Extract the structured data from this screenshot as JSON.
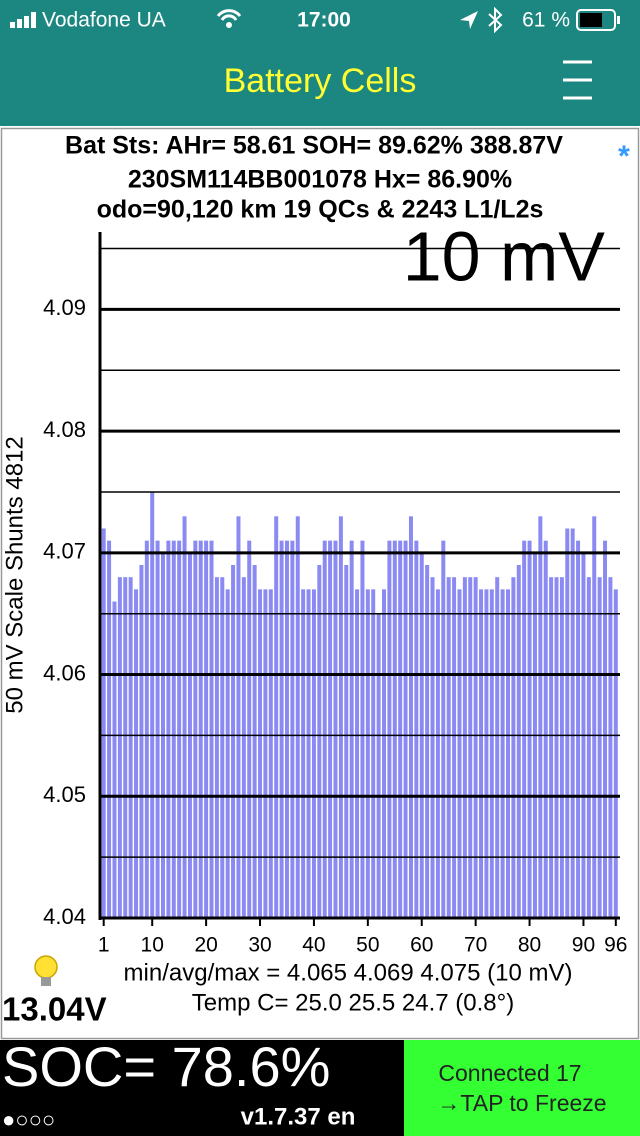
{
  "status_bar": {
    "carrier": "Vodafone UA",
    "time": "17:00",
    "battery": "61 %"
  },
  "nav": {
    "title": "Battery Cells"
  },
  "header": {
    "line1": "Bat Sts: AHr= 58.61 SOH= 89.62% 388.87V",
    "line2": "230SM114BB001078   Hx= 86.90%",
    "line3": "odo=90,120 km 19 QCs & 2243 L1/L2s",
    "marker": "*"
  },
  "chart_data": {
    "type": "bar",
    "scale_label": "10 mV",
    "y_label": "50 mV Scale   Shunts 4812",
    "x": [
      1,
      2,
      3,
      4,
      5,
      6,
      7,
      8,
      9,
      10,
      11,
      12,
      13,
      14,
      15,
      16,
      17,
      18,
      19,
      20,
      21,
      22,
      23,
      24,
      25,
      26,
      27,
      28,
      29,
      30,
      31,
      32,
      33,
      34,
      35,
      36,
      37,
      38,
      39,
      40,
      41,
      42,
      43,
      44,
      45,
      46,
      47,
      48,
      49,
      50,
      51,
      52,
      53,
      54,
      55,
      56,
      57,
      58,
      59,
      60,
      61,
      62,
      63,
      64,
      65,
      66,
      67,
      68,
      69,
      70,
      71,
      72,
      73,
      74,
      75,
      76,
      77,
      78,
      79,
      80,
      81,
      82,
      83,
      84,
      85,
      86,
      87,
      88,
      89,
      90,
      91,
      92,
      93,
      94,
      95,
      96
    ],
    "values": [
      4.072,
      4.071,
      4.066,
      4.068,
      4.068,
      4.068,
      4.067,
      4.069,
      4.071,
      4.075,
      4.071,
      4.07,
      4.071,
      4.071,
      4.071,
      4.073,
      4.07,
      4.071,
      4.071,
      4.071,
      4.071,
      4.068,
      4.068,
      4.067,
      4.069,
      4.073,
      4.068,
      4.071,
      4.069,
      4.067,
      4.067,
      4.067,
      4.073,
      4.071,
      4.071,
      4.071,
      4.073,
      4.067,
      4.067,
      4.067,
      4.069,
      4.071,
      4.071,
      4.071,
      4.073,
      4.069,
      4.071,
      4.067,
      4.071,
      4.067,
      4.067,
      4.065,
      4.067,
      4.071,
      4.071,
      4.071,
      4.071,
      4.073,
      4.071,
      4.07,
      4.069,
      4.068,
      4.067,
      4.071,
      4.068,
      4.068,
      4.067,
      4.068,
      4.068,
      4.068,
      4.067,
      4.067,
      4.067,
      4.068,
      4.067,
      4.067,
      4.068,
      4.069,
      4.071,
      4.071,
      4.07,
      4.073,
      4.071,
      4.068,
      4.068,
      4.068,
      4.072,
      4.072,
      4.071,
      4.07,
      4.068,
      4.073,
      4.068,
      4.071,
      4.068,
      4.067
    ],
    "color": "#8a8af2",
    "xlim": [
      0.5,
      96.5
    ],
    "xticks": [
      1,
      10,
      20,
      30,
      40,
      50,
      60,
      70,
      80,
      90,
      96
    ],
    "ylim": [
      4.04,
      4.0957
    ],
    "yticks": [
      4.04,
      4.05,
      4.06,
      4.07,
      4.08,
      4.09
    ],
    "y_minor_grid": [
      4.045,
      4.055,
      4.065,
      4.075,
      4.085,
      4.095
    ],
    "grid": true
  },
  "footer": {
    "stats": "min/avg/max = 4.065 4.069 4.075  (10 mV)",
    "temp": "Temp C= 25.0  25.5  24.7  (0.8°)",
    "voltage": "13.04V",
    "soc": "SOC= 78.6%",
    "dots": "●○○○",
    "version": "v1.7.37 en",
    "connected": "Connected 17",
    "tap": "→TAP to Freeze"
  }
}
